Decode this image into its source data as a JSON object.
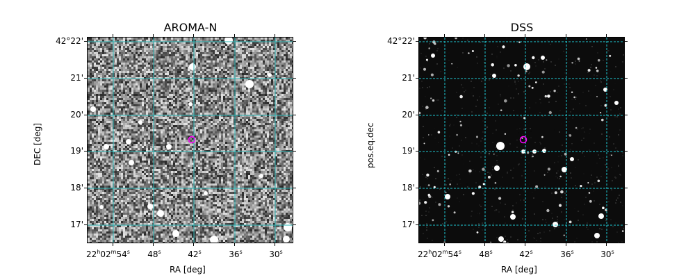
{
  "panels": [
    {
      "title": "AROMA-N",
      "xlabel": "RA [deg]",
      "ylabel": "DEC [deg]",
      "yticks": [
        "42°22'",
        "21'",
        "20'",
        "19'",
        "18'",
        "17'"
      ],
      "xticks": [
        {
          "h": "22",
          "hu": "h",
          "m": "02",
          "mu": "m",
          "s": "54",
          "su": "s"
        },
        {
          "s": "48",
          "su": "s"
        },
        {
          "s": "42",
          "su": "s"
        },
        {
          "s": "36",
          "su": "s"
        },
        {
          "s": "30",
          "su": "s"
        }
      ],
      "style": "noisy-grey",
      "grid_color": "#2ab5b5"
    },
    {
      "title": "DSS",
      "xlabel": "RA [deg]",
      "ylabel": "pos.eq.dec",
      "yticks": [
        "42°22'",
        "21'",
        "20'",
        "19'",
        "18'",
        "17'"
      ],
      "xticks": [
        {
          "h": "22",
          "hu": "h",
          "m": "02",
          "mu": "m",
          "s": "54",
          "su": "s"
        },
        {
          "s": "48",
          "su": "s"
        },
        {
          "s": "42",
          "su": "s"
        },
        {
          "s": "36",
          "su": "s"
        },
        {
          "s": "30",
          "su": "s"
        }
      ],
      "style": "dark-stars",
      "grid_color": "#1ec8d2"
    }
  ],
  "target_marker_color": "#ff00ff"
}
